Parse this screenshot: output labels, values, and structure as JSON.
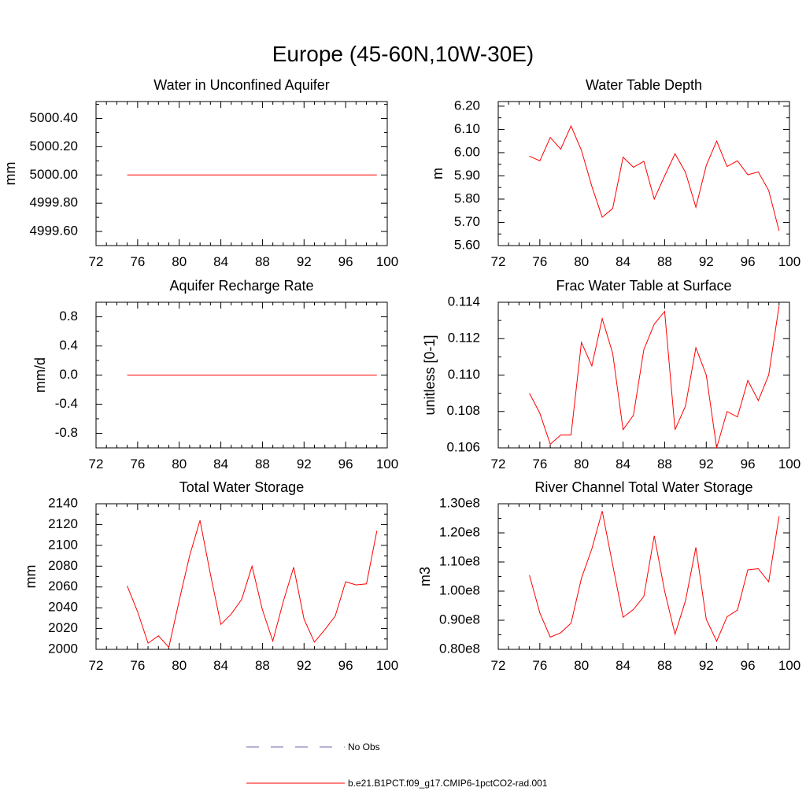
{
  "title": "Europe (45-60N,10W-30E)",
  "chart_data": [
    {
      "type": "line",
      "title": "Water in Unconfined Aquifer",
      "ylabel": "mm",
      "xlim": [
        72,
        100
      ],
      "ylim": [
        4999.5,
        5000.52
      ],
      "xticks": [
        "72",
        "76",
        "80",
        "84",
        "88",
        "92",
        "96",
        "100"
      ],
      "yticks": [
        4999.6,
        4999.8,
        5000.0,
        5000.2,
        5000.4
      ],
      "yticklabels": [
        "4999.60",
        "4999.80",
        "5000.00",
        "5000.20",
        "5000.40"
      ],
      "x": [
        75,
        99
      ],
      "series": [
        {
          "values": [
            5000.0,
            5000.0
          ]
        }
      ]
    },
    {
      "type": "line",
      "title": "Water Table Depth",
      "ylabel": "m",
      "xlim": [
        72,
        100
      ],
      "ylim": [
        5.6,
        6.22
      ],
      "xticks": [
        "72",
        "76",
        "80",
        "84",
        "88",
        "92",
        "96",
        "100"
      ],
      "yticks": [
        5.6,
        5.7,
        5.8,
        5.9,
        6.0,
        6.1,
        6.2
      ],
      "yticklabels": [
        "5.60",
        "5.70",
        "5.80",
        "5.90",
        "6.00",
        "6.10",
        "6.20"
      ],
      "x": [
        75,
        76,
        77,
        78,
        79,
        80,
        81,
        82,
        83,
        84,
        85,
        86,
        87,
        88,
        89,
        90,
        91,
        92,
        93,
        94,
        95,
        96,
        97,
        98,
        99
      ],
      "series": [
        {
          "values": [
            5.985,
            5.965,
            6.065,
            6.015,
            6.115,
            6.01,
            5.855,
            5.722,
            5.76,
            5.98,
            5.937,
            5.963,
            5.8,
            5.9,
            5.995,
            5.915,
            5.765,
            5.945,
            6.05,
            5.94,
            5.965,
            5.905,
            5.917,
            5.837,
            5.663
          ]
        }
      ]
    },
    {
      "type": "line",
      "title": "Aquifer Recharge Rate",
      "ylabel": "mm/d",
      "xlim": [
        72,
        100
      ],
      "ylim": [
        -1.0,
        1.0
      ],
      "xticks": [
        "72",
        "76",
        "80",
        "84",
        "88",
        "92",
        "96",
        "100"
      ],
      "yticks": [
        -0.8,
        -0.4,
        0.0,
        0.4,
        0.8
      ],
      "yticklabels": [
        "-0.8",
        "-0.4",
        "0.0",
        "0.4",
        "0.8"
      ],
      "x": [
        75,
        99
      ],
      "series": [
        {
          "values": [
            0.0,
            0.0
          ]
        }
      ]
    },
    {
      "type": "line",
      "title": "Frac Water Table at Surface",
      "ylabel": "unitless [0-1]",
      "xlim": [
        72,
        100
      ],
      "ylim": [
        0.106,
        0.114
      ],
      "xticks": [
        "72",
        "76",
        "80",
        "84",
        "88",
        "92",
        "96",
        "100"
      ],
      "yticks": [
        0.106,
        0.108,
        0.11,
        0.112,
        0.114
      ],
      "yticklabels": [
        "0.106",
        "0.108",
        "0.110",
        "0.112",
        "0.114"
      ],
      "x": [
        75,
        76,
        77,
        78,
        79,
        80,
        81,
        82,
        83,
        84,
        85,
        86,
        87,
        88,
        89,
        90,
        91,
        92,
        93,
        94,
        95,
        96,
        97,
        98,
        99
      ],
      "series": [
        {
          "values": [
            0.109,
            0.1079,
            0.1062,
            0.1067,
            0.1067,
            0.1118,
            0.1105,
            0.1131,
            0.1112,
            0.107,
            0.1078,
            0.1114,
            0.1128,
            0.1135,
            0.107,
            0.1083,
            0.1115,
            0.11,
            0.106,
            0.108,
            0.1077,
            0.1097,
            0.1086,
            0.11,
            0.1138
          ]
        }
      ]
    },
    {
      "type": "line",
      "title": "Total Water Storage",
      "ylabel": "mm",
      "xlim": [
        72,
        100
      ],
      "ylim": [
        2000,
        2140
      ],
      "xticks": [
        "72",
        "76",
        "80",
        "84",
        "88",
        "92",
        "96",
        "100"
      ],
      "yticks": [
        2000,
        2020,
        2040,
        2060,
        2080,
        2100,
        2120,
        2140
      ],
      "yticklabels": [
        "2000",
        "2020",
        "2040",
        "2060",
        "2080",
        "2100",
        "2120",
        "2140"
      ],
      "x": [
        75,
        76,
        77,
        78,
        79,
        80,
        81,
        82,
        83,
        84,
        85,
        86,
        87,
        88,
        89,
        90,
        91,
        92,
        93,
        94,
        95,
        96,
        97,
        98,
        99
      ],
      "series": [
        {
          "values": [
            2061,
            2036,
            2006,
            2013,
            2002,
            2047,
            2090,
            2124,
            2072,
            2024,
            2034,
            2048,
            2080,
            2038,
            2008,
            2046,
            2079,
            2029,
            2007,
            2019,
            2032,
            2065,
            2062,
            2063,
            2114
          ]
        }
      ]
    },
    {
      "type": "line",
      "title": "River Channel Total Water Storage",
      "ylabel": "m3",
      "xlim": [
        72,
        100
      ],
      "ylim": [
        0.8,
        1.3
      ],
      "xticks": [
        "72",
        "76",
        "80",
        "84",
        "88",
        "92",
        "96",
        "100"
      ],
      "yticks": [
        0.8,
        0.9,
        1.0,
        1.1,
        1.2,
        1.3
      ],
      "yticklabels": [
        "0.80e8",
        "0.90e8",
        "1.00e8",
        "1.10e8",
        "1.20e8",
        "1.30e8"
      ],
      "x": [
        75,
        76,
        77,
        78,
        79,
        80,
        81,
        82,
        83,
        84,
        85,
        86,
        87,
        88,
        89,
        90,
        91,
        92,
        93,
        94,
        95,
        96,
        97,
        98,
        99
      ],
      "series": [
        {
          "values": [
            1.055,
            0.925,
            0.842,
            0.857,
            0.89,
            1.044,
            1.145,
            1.275,
            1.09,
            0.91,
            0.937,
            0.982,
            1.19,
            1.0,
            0.852,
            0.967,
            1.15,
            0.903,
            0.828,
            0.912,
            0.935,
            1.073,
            1.077,
            1.032,
            1.257
          ]
        }
      ]
    }
  ],
  "legend": [
    {
      "label": "No Obs",
      "style": "dashed",
      "color": "#6a6aaa"
    },
    {
      "label": "b.e21.B1PCT.f09_g17.CMIP6-1pctCO2-rad.001",
      "style": "solid",
      "color": "#ff0000"
    }
  ]
}
